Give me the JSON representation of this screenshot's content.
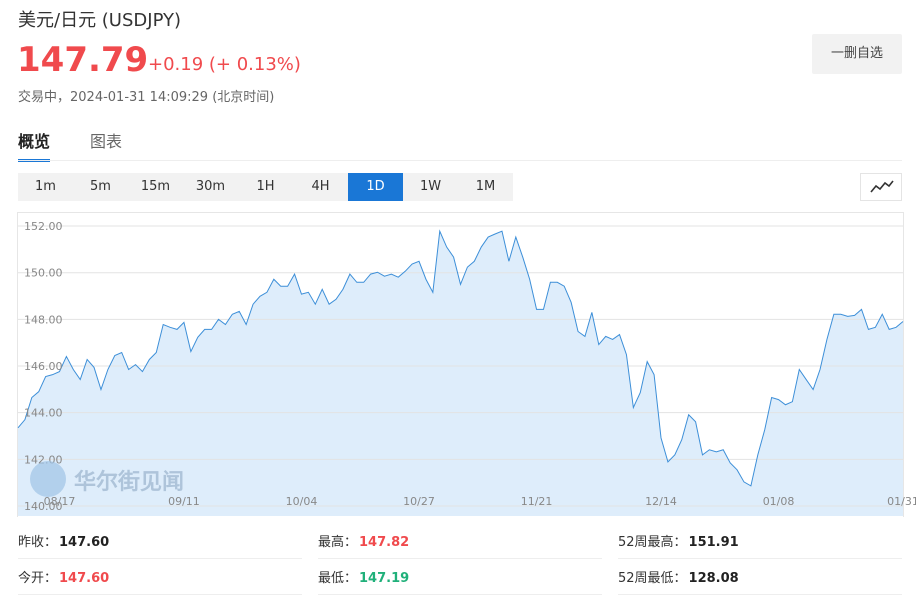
{
  "header": {
    "title": "美元/日元 (USDJPY)",
    "price": "147.79",
    "change": "+0.19 (+ 0.13%)",
    "status": "交易中，2024-01-31 14:09:29 (北京时间)",
    "up_color": "#f04a4d"
  },
  "watchlist_button": "一删自选",
  "tabs": [
    "概览",
    "图表"
  ],
  "active_tab": 0,
  "ranges": [
    "1m",
    "5m",
    "15m",
    "30m",
    "1H",
    "4H",
    "1D",
    "1W",
    "1M"
  ],
  "active_range": 6,
  "chart_data": {
    "type": "line",
    "watermark": "华尔街见闻",
    "color": "#3d8fd8",
    "fill": "#deedfb",
    "grid": true,
    "ylim": [
      139.57,
      152.56
    ],
    "yticks": [
      {
        "value": 140,
        "label": "140.00"
      },
      {
        "value": 142,
        "label": "142.00"
      },
      {
        "value": 144,
        "label": "144.00"
      },
      {
        "value": 146,
        "label": "146.00"
      },
      {
        "value": 148,
        "label": "148.00"
      },
      {
        "value": 150,
        "label": "150.00"
      },
      {
        "value": 152,
        "label": "152.00"
      }
    ],
    "categories": [
      null,
      null,
      null,
      null,
      null,
      null,
      "08/17",
      null,
      null,
      null,
      null,
      null,
      null,
      null,
      null,
      null,
      null,
      null,
      null,
      null,
      null,
      null,
      null,
      null,
      "09/11",
      null,
      null,
      null,
      null,
      null,
      null,
      null,
      null,
      null,
      null,
      null,
      null,
      null,
      null,
      null,
      null,
      "10/04",
      null,
      null,
      null,
      null,
      null,
      null,
      null,
      null,
      null,
      null,
      null,
      null,
      null,
      null,
      null,
      null,
      "10/27",
      null,
      null,
      null,
      null,
      null,
      null,
      null,
      null,
      null,
      null,
      null,
      null,
      null,
      null,
      null,
      null,
      "11/21",
      null,
      null,
      null,
      null,
      null,
      null,
      null,
      null,
      null,
      null,
      null,
      null,
      null,
      null,
      null,
      null,
      null,
      "12/14",
      null,
      null,
      null,
      null,
      null,
      null,
      null,
      null,
      null,
      null,
      null,
      null,
      null,
      null,
      null,
      null,
      "01/08",
      null,
      null,
      null,
      null,
      null,
      null,
      null,
      null,
      null,
      null,
      null,
      null,
      null,
      null,
      null,
      null,
      null,
      "01/31"
    ],
    "values": [
      143.35,
      143.7,
      144.65,
      144.9,
      145.55,
      145.63,
      145.76,
      146.41,
      145.85,
      145.42,
      146.28,
      145.94,
      144.99,
      145.85,
      146.45,
      146.58,
      145.85,
      146.06,
      145.76,
      146.28,
      146.58,
      147.78,
      147.66,
      147.57,
      147.87,
      146.62,
      147.23,
      147.57,
      147.57,
      148.0,
      147.78,
      148.22,
      148.34,
      147.78,
      148.65,
      148.99,
      149.16,
      149.72,
      149.42,
      149.42,
      149.94,
      149.08,
      149.16,
      148.65,
      149.29,
      148.65,
      148.86,
      149.29,
      149.94,
      149.59,
      149.59,
      149.94,
      150.02,
      149.85,
      149.94,
      149.81,
      150.06,
      150.37,
      150.49,
      149.72,
      149.16,
      151.78,
      151.1,
      150.67,
      149.5,
      150.24,
      150.49,
      151.1,
      151.53,
      151.66,
      151.78,
      150.49,
      151.53,
      150.67,
      149.72,
      148.43,
      148.43,
      149.59,
      149.59,
      149.42,
      148.73,
      147.48,
      147.27,
      148.3,
      146.92,
      147.27,
      147.14,
      147.35,
      146.49,
      144.22,
      144.86,
      146.19,
      145.63,
      142.92,
      141.89,
      142.19,
      142.84,
      143.91,
      143.61,
      142.19,
      142.41,
      142.32,
      142.41,
      141.85,
      141.55,
      141.03,
      140.86,
      142.19,
      143.27,
      144.65,
      144.56,
      144.34,
      144.47,
      145.85,
      145.42,
      144.99,
      145.85,
      147.14,
      148.22,
      148.22,
      148.13,
      148.17,
      148.43,
      147.57,
      147.66,
      148.22,
      147.57,
      147.66,
      147.91
    ]
  },
  "stats": [
    {
      "label": "昨收：",
      "value": "147.60",
      "color": "#222222"
    },
    {
      "label": "最高：",
      "value": "147.82",
      "color": "#f04a4d"
    },
    {
      "label": "52周最高：",
      "value": "151.91",
      "color": "#222222"
    },
    {
      "label": "今开：",
      "value": "147.60",
      "color": "#f04a4d"
    },
    {
      "label": "最低：",
      "value": "147.19",
      "color": "#20b07a"
    },
    {
      "label": "52周最低：",
      "value": "128.08",
      "color": "#222222"
    }
  ]
}
